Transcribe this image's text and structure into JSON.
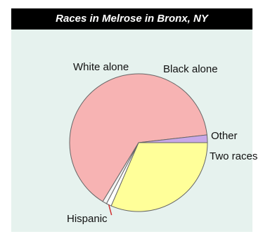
{
  "chart_data": {
    "type": "pie",
    "title": "Races in Melrose in Bronx, NY",
    "slices": [
      {
        "label": "Black alone",
        "value": 31.5,
        "color": "#ffff99"
      },
      {
        "label": "Other",
        "value": 1.2,
        "color": "#ffffff"
      },
      {
        "label": "Two races",
        "value": 1.0,
        "color": "#f4f4f4"
      },
      {
        "label": "Hispanic",
        "value": 64.5,
        "color": "#f7b3b3"
      },
      {
        "label": "White alone",
        "value": 1.8,
        "color": "#c8a8e8"
      }
    ],
    "start_angle_deg": 0,
    "direction": "clockwise-from-east",
    "border_color": "#666666",
    "leader_color": "#d03030"
  },
  "colors": {
    "background": "#e6f2ee",
    "title_bar": "#000000",
    "title_text": "#ffffff"
  }
}
